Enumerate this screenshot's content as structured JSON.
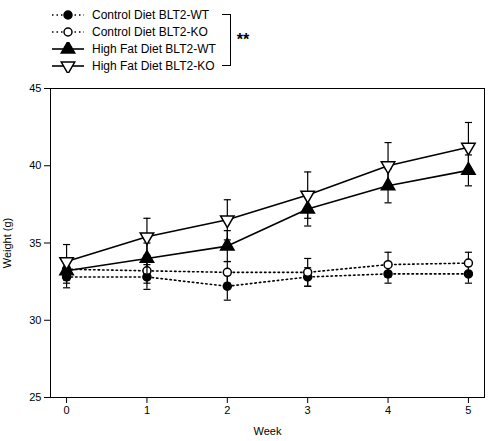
{
  "chart_data": {
    "type": "line",
    "xlabel": "Week",
    "ylabel": "Weight (g)",
    "x": [
      0,
      1,
      2,
      3,
      4,
      5
    ],
    "xlim": [
      -0.2,
      5.2
    ],
    "xticks": [
      0,
      1,
      2,
      3,
      4,
      5
    ],
    "ylim": [
      25,
      45
    ],
    "yticks": [
      25,
      30,
      35,
      40,
      45
    ],
    "legend": "upper left",
    "annotations": [
      "**"
    ],
    "series": [
      {
        "name": "Control Diet BLT2-WT",
        "color": "#000000",
        "marker": "circle_filled",
        "line_style": "dotted",
        "values": [
          32.8,
          32.8,
          32.2,
          32.8,
          33.0,
          33.0
        ],
        "errors": [
          0.7,
          0.8,
          0.9,
          0.6,
          0.6,
          0.6
        ]
      },
      {
        "name": "Control Diet BLT2-KO",
        "color": "#000000",
        "marker": "circle_open",
        "line_style": "dotted",
        "values": [
          33.3,
          33.2,
          33.1,
          33.1,
          33.6,
          33.7
        ],
        "errors": [
          0.7,
          0.8,
          0.7,
          0.9,
          0.8,
          0.7
        ]
      },
      {
        "name": "High Fat Diet BLT2-WT",
        "color": "#000000",
        "marker": "triangle_up_filled",
        "line_style": "solid",
        "values": [
          33.2,
          34.0,
          34.8,
          37.2,
          38.7,
          39.7
        ],
        "errors": [
          0.8,
          1.0,
          1.0,
          1.1,
          1.1,
          1.0
        ]
      },
      {
        "name": "High Fat Diet BLT2-KO",
        "color": "#000000",
        "marker": "triangle_down_open",
        "line_style": "solid",
        "values": [
          33.8,
          35.4,
          36.5,
          38.1,
          40.0,
          41.2
        ],
        "errors": [
          1.1,
          1.2,
          1.3,
          1.5,
          1.5,
          1.6
        ]
      }
    ]
  }
}
